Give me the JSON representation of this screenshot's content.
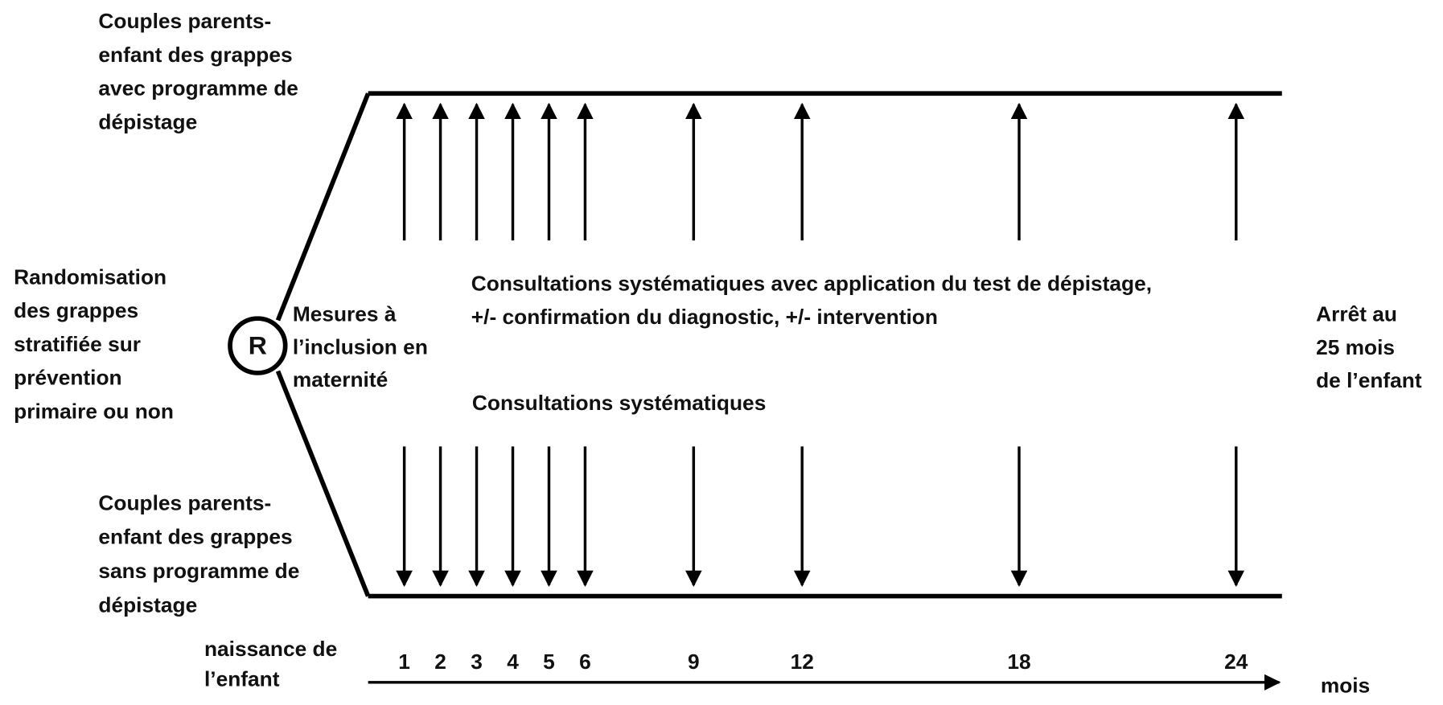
{
  "groups": {
    "screening": [
      "Couples parents-",
      "enfant des grappes",
      "avec programme de",
      "dépistage"
    ],
    "control": [
      "Couples parents-",
      "enfant des grappes",
      "sans programme de",
      "dépistage"
    ]
  },
  "randomisation": [
    "Randomisation",
    "des grappes",
    "stratifiée sur",
    "prévention",
    "primaire ou non"
  ],
  "r_symbol": "R",
  "inclusion": [
    "Mesures à",
    "l’inclusion en",
    "maternité"
  ],
  "consultations_screening": [
    "Consultations systématiques avec application du test de dépistage,",
    "+/- confirmation du diagnostic, +/- intervention"
  ],
  "consultations_control": "Consultations systématiques",
  "end": [
    "Arrêt au",
    "25 mois",
    "de l’enfant"
  ],
  "birth": [
    "naissance de",
    "l’enfant"
  ],
  "months": [
    1,
    2,
    3,
    4,
    5,
    6,
    9,
    12,
    18,
    24
  ],
  "axis_unit": "mois"
}
